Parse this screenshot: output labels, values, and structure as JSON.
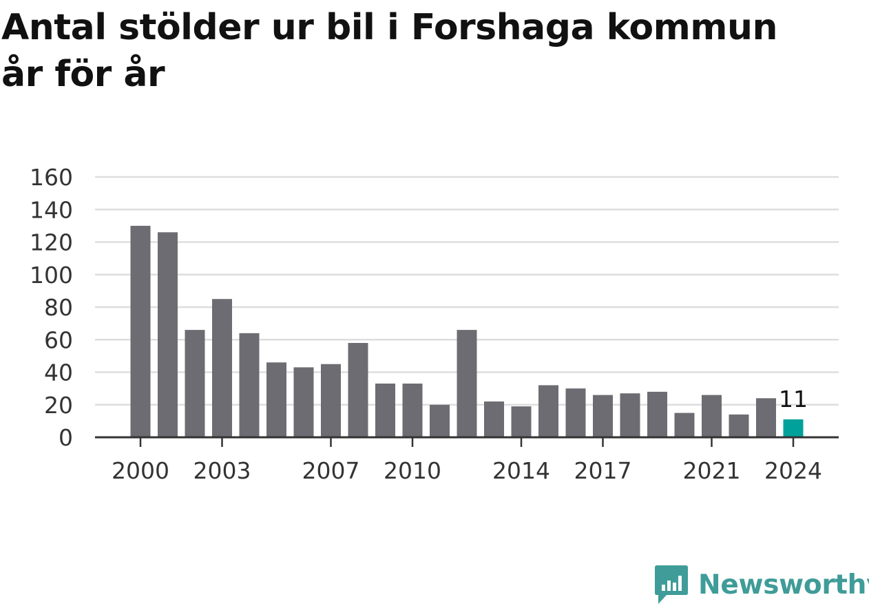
{
  "title_lines": [
    "Antal stölder ur bil i Forshaga kommun",
    "år för år"
  ],
  "brand": {
    "name": "Newsworthy",
    "icon": "newsworthy-logo-icon",
    "color": "#3f9c98"
  },
  "colors": {
    "bar": "#6d6c72",
    "highlight": "#00a19a",
    "grid": "#dddddd",
    "axis": "#333333"
  },
  "chart_data": {
    "type": "bar",
    "title": "Antal stölder ur bil i Forshaga kommun år för år",
    "xlabel": "",
    "ylabel": "",
    "ylim": [
      0,
      160
    ],
    "y_ticks": [
      0,
      20,
      40,
      60,
      80,
      100,
      120,
      140,
      160
    ],
    "x_tick_labels": [
      "2000",
      "2003",
      "2007",
      "2010",
      "2014",
      "2017",
      "2021",
      "2024"
    ],
    "grid": true,
    "categories": [
      2000,
      2001,
      2002,
      2003,
      2004,
      2005,
      2006,
      2007,
      2008,
      2009,
      2010,
      2011,
      2012,
      2013,
      2014,
      2015,
      2016,
      2017,
      2018,
      2019,
      2020,
      2021,
      2022,
      2023,
      2024
    ],
    "values": [
      130,
      126,
      66,
      85,
      64,
      46,
      43,
      45,
      58,
      33,
      33,
      20,
      66,
      22,
      19,
      32,
      30,
      26,
      27,
      28,
      15,
      26,
      14,
      24,
      11
    ],
    "highlight": {
      "category": 2024,
      "label": "11"
    }
  }
}
